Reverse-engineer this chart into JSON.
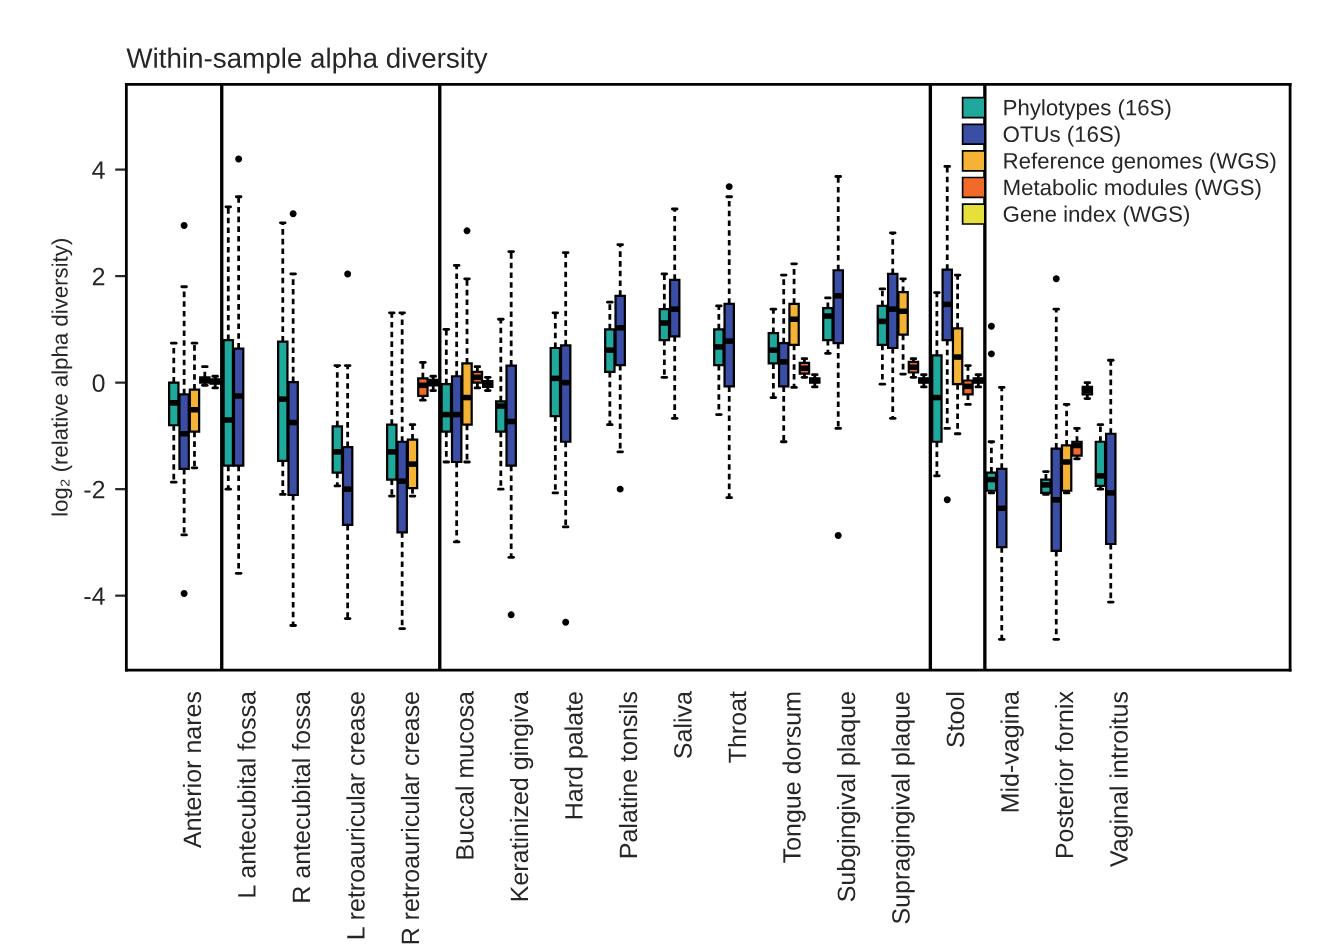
{
  "chart_data": {
    "type": "box",
    "title": "Within-sample alpha diversity",
    "ylabel": "log₂ (relative alpha diversity)",
    "categories": [
      "Anterior nares",
      "L antecubital fossa",
      "R antecubital fossa",
      "L retroauricular crease",
      "R retroauricular crease",
      "Buccal mucosa",
      "Keratinized gingiva",
      "Hard palate",
      "Palatine tonsils",
      "Saliva",
      "Throat",
      "Tongue dorsum",
      "Subgingival plaque",
      "Supragingival plaque",
      "Stool",
      "Mid-vagina",
      "Posterior fornix",
      "Vaginal introitus"
    ],
    "ylim": [
      -5.4,
      5.6
    ],
    "yticks": [
      -4,
      -2,
      0,
      2,
      4
    ],
    "grid": false,
    "legend": "top right",
    "series": [
      {
        "name": "Phylotypes (16S)",
        "color": "#1fa89c",
        "boxes": [
          {
            "low": -1.87,
            "q1": -0.8,
            "median": -0.38,
            "q3": 0.0,
            "high": 0.74
          },
          {
            "low": -2.0,
            "q1": -1.56,
            "median": -0.7,
            "q3": 0.8,
            "high": 3.3
          },
          {
            "low": -2.1,
            "q1": -1.47,
            "median": -0.31,
            "q3": 0.77,
            "high": 3.0
          },
          {
            "low": -1.94,
            "q1": -1.69,
            "median": -1.3,
            "q3": -0.82,
            "high": 0.32
          },
          {
            "low": -2.13,
            "q1": -1.82,
            "median": -1.3,
            "q3": -0.79,
            "high": 1.31
          },
          {
            "low": -1.49,
            "q1": -0.92,
            "median": -0.6,
            "q3": -0.03,
            "high": 1.0
          },
          {
            "low": -2.0,
            "q1": -0.92,
            "median": -0.44,
            "q3": -0.35,
            "high": 1.19
          },
          {
            "low": -2.07,
            "q1": -0.63,
            "median": 0.08,
            "q3": 0.65,
            "high": 1.31
          },
          {
            "low": -0.79,
            "q1": 0.2,
            "median": 0.61,
            "q3": 1.0,
            "high": 1.51
          },
          {
            "low": 0.1,
            "q1": 0.8,
            "median": 1.12,
            "q3": 1.38,
            "high": 2.04
          },
          {
            "low": -0.6,
            "q1": 0.33,
            "median": 0.67,
            "q3": 1.0,
            "high": 1.44
          },
          {
            "low": -0.28,
            "q1": 0.36,
            "median": 0.61,
            "q3": 0.93,
            "high": 1.38
          },
          {
            "low": 0.55,
            "q1": 0.8,
            "median": 1.25,
            "q3": 1.4,
            "high": 1.59
          },
          {
            "low": -0.03,
            "q1": 0.71,
            "median": 1.15,
            "q3": 1.44,
            "high": 1.76
          },
          {
            "low": -1.75,
            "q1": -1.11,
            "median": -0.28,
            "q3": 0.51,
            "high": 1.69
          },
          {
            "low": -2.07,
            "q1": -2.03,
            "median": -1.82,
            "q3": -1.69,
            "high": -1.11,
            "outliers": [
              1.06,
              0.54
            ]
          },
          {
            "low": -2.1,
            "q1": -2.07,
            "median": -1.92,
            "q3": -1.82,
            "high": -1.67
          },
          {
            "low": -2.0,
            "q1": -1.94,
            "median": -1.75,
            "q3": -1.11,
            "high": -0.79
          }
        ]
      },
      {
        "name": "OTUs (16S)",
        "color": "#3b4ea6",
        "boxes": [
          {
            "low": -2.86,
            "q1": -1.62,
            "median": -0.96,
            "q3": -0.22,
            "high": 1.8,
            "outliers": [
              2.95,
              -3.96
            ]
          },
          {
            "low": -3.58,
            "q1": -1.56,
            "median": -0.25,
            "q3": 0.64,
            "high": 3.49,
            "outliers": [
              4.2
            ]
          },
          {
            "low": -4.56,
            "q1": -2.11,
            "median": -0.75,
            "q3": 0.01,
            "high": 2.04,
            "outliers": [
              3.17
            ]
          },
          {
            "low": -4.43,
            "q1": -2.67,
            "median": -2.0,
            "q3": -1.21,
            "high": 0.32,
            "outliers": [
              2.04
            ]
          },
          {
            "low": -4.62,
            "q1": -2.81,
            "median": -1.85,
            "q3": -1.11,
            "high": 1.31
          },
          {
            "low": -2.99,
            "q1": -1.49,
            "median": -0.6,
            "q3": 0.12,
            "high": 2.2
          },
          {
            "low": -3.28,
            "q1": -1.56,
            "median": -0.73,
            "q3": 0.32,
            "high": 2.46,
            "outliers": [
              -4.36
            ]
          },
          {
            "low": -2.71,
            "q1": -1.11,
            "median": 0.0,
            "q3": 0.7,
            "high": 2.44,
            "outliers": [
              -4.5
            ]
          },
          {
            "low": -1.3,
            "q1": 0.33,
            "median": 1.03,
            "q3": 1.63,
            "high": 2.59,
            "outliers": [
              -2.0
            ]
          },
          {
            "low": -0.67,
            "q1": 0.87,
            "median": 1.38,
            "q3": 1.93,
            "high": 3.26
          },
          {
            "low": -2.16,
            "q1": -0.07,
            "median": 0.78,
            "q3": 1.48,
            "high": 3.49,
            "outliers": [
              3.68
            ]
          },
          {
            "low": -1.11,
            "q1": -0.07,
            "median": 0.39,
            "q3": 0.74,
            "high": 2.02
          },
          {
            "low": -0.86,
            "q1": 0.74,
            "median": 1.63,
            "q3": 2.11,
            "high": 3.87,
            "outliers": [
              -2.87
            ]
          },
          {
            "low": -0.67,
            "q1": 0.65,
            "median": 1.38,
            "q3": 2.04,
            "high": 2.81
          },
          {
            "low": -0.86,
            "q1": 0.8,
            "median": 1.47,
            "q3": 2.12,
            "high": 4.06,
            "outliers": [
              -2.2
            ]
          },
          {
            "low": -4.82,
            "q1": -3.09,
            "median": -2.36,
            "q3": -1.62,
            "high": -0.09
          },
          {
            "low": -4.82,
            "q1": -3.16,
            "median": -2.2,
            "q3": -1.24,
            "high": 1.38,
            "outliers": [
              1.95
            ]
          },
          {
            "low": -4.12,
            "q1": -3.03,
            "median": -2.07,
            "q3": -0.96,
            "high": 0.42
          }
        ]
      },
      {
        "name": "Reference genomes (WGS)",
        "color": "#f5b335",
        "boxes": [
          {
            "low": -1.6,
            "q1": -0.92,
            "median": -0.51,
            "q3": -0.13,
            "high": 0.74
          },
          null,
          null,
          null,
          {
            "low": -2.13,
            "q1": -1.98,
            "median": -1.53,
            "q3": -1.07,
            "high": -0.79
          },
          {
            "low": -1.49,
            "q1": -0.79,
            "median": -0.28,
            "q3": 0.36,
            "high": 1.95,
            "outliers": [
              2.85
            ]
          },
          null,
          null,
          null,
          null,
          null,
          {
            "low": -0.09,
            "q1": 0.71,
            "median": 1.19,
            "q3": 1.48,
            "high": 2.23
          },
          null,
          {
            "low": 0.16,
            "q1": 0.9,
            "median": 1.34,
            "q3": 1.7,
            "high": 1.95
          },
          {
            "low": -0.96,
            "q1": -0.03,
            "median": 0.48,
            "q3": 1.02,
            "high": 2.02
          },
          null,
          {
            "low": -2.07,
            "q1": -2.03,
            "median": -1.49,
            "q3": -1.18,
            "high": -0.41
          },
          null
        ]
      },
      {
        "name": "Metabolic modules (WGS)",
        "color": "#f26a2a",
        "boxes": [
          {
            "low": -0.05,
            "q1": 0.0,
            "median": 0.05,
            "q3": 0.1,
            "high": 0.3
          },
          null,
          null,
          null,
          {
            "low": -0.33,
            "q1": -0.25,
            "median": -0.05,
            "q3": 0.08,
            "high": 0.38
          },
          {
            "low": -0.1,
            "q1": 0.0,
            "median": 0.1,
            "q3": 0.2,
            "high": 0.3
          },
          null,
          null,
          null,
          null,
          null,
          {
            "low": 0.1,
            "q1": 0.17,
            "median": 0.27,
            "q3": 0.37,
            "high": 0.45
          },
          null,
          {
            "low": 0.1,
            "q1": 0.19,
            "median": 0.29,
            "q3": 0.39,
            "high": 0.45
          },
          {
            "low": -0.41,
            "q1": -0.22,
            "median": -0.07,
            "q3": 0.04,
            "high": 0.32
          },
          null,
          {
            "low": -1.43,
            "q1": -1.37,
            "median": -1.18,
            "q3": -1.11,
            "high": -0.86
          },
          null
        ]
      },
      {
        "name": "Gene index (WGS)",
        "color": "#e6e03a",
        "boxes": [
          {
            "low": -0.1,
            "q1": -0.02,
            "median": 0.02,
            "q3": 0.06,
            "high": 0.12
          },
          null,
          null,
          null,
          {
            "low": -0.15,
            "q1": -0.05,
            "median": 0.0,
            "q3": 0.05,
            "high": 0.12
          },
          {
            "low": -0.15,
            "q1": -0.08,
            "median": -0.03,
            "q3": 0.03,
            "high": 0.1
          },
          null,
          null,
          null,
          null,
          null,
          {
            "low": -0.08,
            "q1": 0.0,
            "median": 0.04,
            "q3": 0.08,
            "high": 0.15
          },
          null,
          {
            "low": -0.08,
            "q1": 0.0,
            "median": 0.04,
            "q3": 0.08,
            "high": 0.15
          },
          {
            "low": -0.08,
            "q1": 0.0,
            "median": 0.04,
            "q3": 0.08,
            "high": 0.15
          },
          null,
          {
            "low": -0.3,
            "q1": -0.22,
            "median": -0.15,
            "q3": -0.08,
            "high": 0.0
          },
          null
        ]
      }
    ]
  }
}
